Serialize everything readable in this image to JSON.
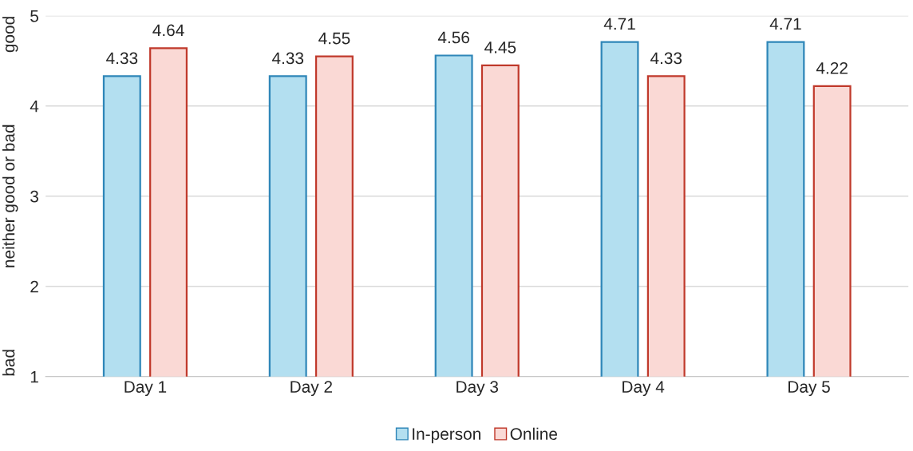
{
  "chart_data": {
    "type": "bar",
    "categories": [
      "Day 1",
      "Day 2",
      "Day 3",
      "Day 4",
      "Day 5"
    ],
    "series": [
      {
        "name": "In-person",
        "color": "#b3dff0",
        "values": [
          4.33,
          4.33,
          4.56,
          4.71,
          4.71
        ]
      },
      {
        "name": "Online",
        "color": "#fad9d5",
        "values": [
          4.64,
          4.55,
          4.45,
          4.33,
          4.22
        ]
      }
    ],
    "ylim": [
      1,
      5
    ],
    "yticks": [
      1,
      2,
      3,
      4,
      5
    ],
    "grid": "y",
    "legend": "bottom",
    "data_labels": true,
    "annotations": [
      "bad",
      "neither good or bad",
      "good"
    ]
  }
}
